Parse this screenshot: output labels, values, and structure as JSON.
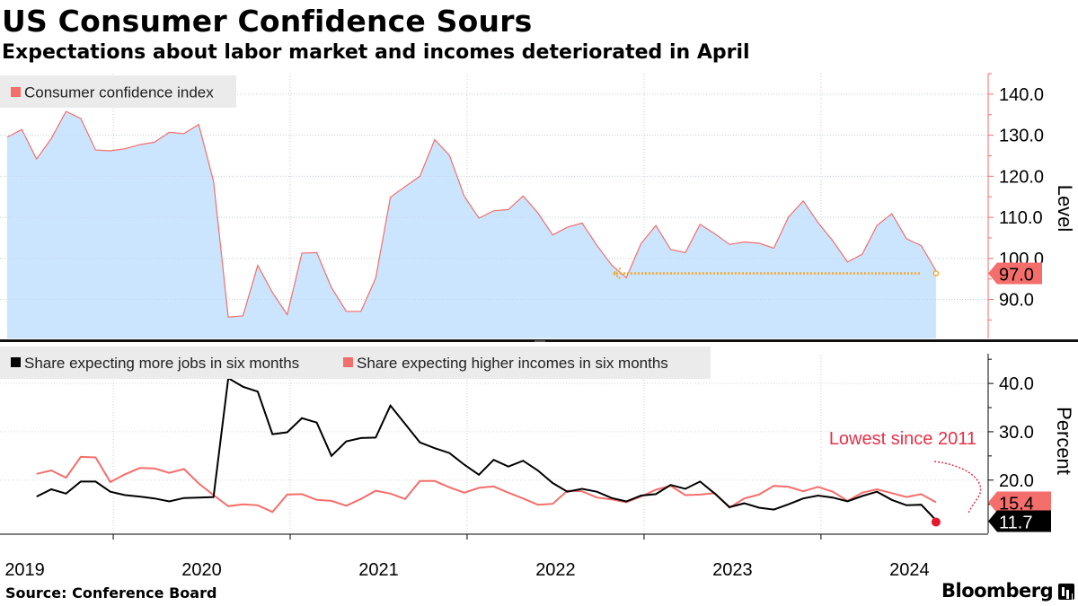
{
  "header": {
    "title": "US Consumer Confidence Sours",
    "subtitle": "Expectations about labor market and incomes deteriorated in April"
  },
  "footer": {
    "source": "Source: Conference Board",
    "brand": "Bloomberg"
  },
  "colors": {
    "accent": "#f46e6b",
    "area_fill": "#cce5ff",
    "jobs": "#000000",
    "arrow": "#f5a623",
    "annotation": "#e8314a",
    "axis": "#f46e6b"
  },
  "chart_data": [
    {
      "type": "area",
      "title": "Consumer confidence index",
      "ylabel": "Level",
      "ylim": [
        80.5,
        145
      ],
      "yticks": [
        90,
        100,
        110,
        120,
        130,
        140
      ],
      "ytick_labels": [
        "90.0",
        "100.0",
        "110.0",
        "120.0",
        "130.0",
        "140.0"
      ],
      "x_start": "2019-01",
      "x_end": "2024-04",
      "x_ticks": [
        "2019",
        "2020",
        "2021",
        "2022",
        "2023",
        "2024"
      ],
      "legend": "top-left",
      "series": [
        {
          "name": "Consumer confidence index",
          "values": [
            129.5,
            131.4,
            124.2,
            129.2,
            135.8,
            134.1,
            126.4,
            126.2,
            126.7,
            127.7,
            128.3,
            130.7,
            130.4,
            132.6,
            118.8,
            85.7,
            86.0,
            98.3,
            91.7,
            86.3,
            101.3,
            101.4,
            92.9,
            87.1,
            87.1,
            95.2,
            114.9,
            117.5,
            120.0,
            128.9,
            125.1,
            115.2,
            109.8,
            111.6,
            111.9,
            115.2,
            111.1,
            105.7,
            107.6,
            108.6,
            103.2,
            98.4,
            95.3,
            103.6,
            108.0,
            102.2,
            101.4,
            108.3,
            106.0,
            103.4,
            104.0,
            103.7,
            102.5,
            110.1,
            114.0,
            108.7,
            104.3,
            99.1,
            101.0,
            108.0,
            110.9,
            104.8,
            103.1,
            97.0
          ]
        }
      ],
      "last_value_label": "97.0",
      "annotation": {
        "type": "arrow",
        "from": "2024-04",
        "to": "2022-06",
        "value": 97.0
      }
    },
    {
      "type": "line",
      "ylabel": "Percent",
      "ylim": [
        9,
        48
      ],
      "yticks": [
        20,
        30,
        40
      ],
      "ytick_labels": [
        "20.0",
        "30.0",
        "40.0"
      ],
      "legend": "top-left",
      "series": [
        {
          "name": "Share expecting more jobs in six months",
          "values": [
            16.6,
            18.1,
            17.2,
            19.7,
            19.7,
            17.6,
            16.9,
            16.6,
            16.2,
            15.6,
            16.3,
            16.4,
            16.5,
            41.1,
            39.3,
            38.3,
            29.5,
            29.9,
            32.8,
            31.9,
            25.0,
            28.0,
            28.7,
            28.8,
            35.4,
            31.6,
            27.8,
            26.6,
            25.6,
            23.2,
            21.1,
            24.2,
            22.8,
            24.0,
            22.0,
            19.4,
            17.6,
            18.2,
            17.6,
            16.3,
            15.6,
            16.8,
            17.1,
            19.0,
            18.2,
            19.7,
            17.2,
            14.4,
            15.2,
            14.3,
            13.9,
            15.0,
            16.2,
            16.8,
            16.4,
            15.6,
            16.7,
            17.6,
            15.9,
            14.8,
            14.9,
            11.7
          ]
        },
        {
          "name": "Share expecting higher incomes in six months",
          "values": [
            21.3,
            22.0,
            20.5,
            24.8,
            24.7,
            19.6,
            21.2,
            22.5,
            22.4,
            21.5,
            22.3,
            19.3,
            16.9,
            14.6,
            15.0,
            14.8,
            13.4,
            17.0,
            17.1,
            15.9,
            15.7,
            14.7,
            16.1,
            17.8,
            17.2,
            16.1,
            19.8,
            19.8,
            18.5,
            17.4,
            18.4,
            18.7,
            17.4,
            16.2,
            14.9,
            15.1,
            17.8,
            17.7,
            16.4,
            16.0,
            15.4,
            16.6,
            18.0,
            18.8,
            16.9,
            17.0,
            17.3,
            14.3,
            16.2,
            17.0,
            18.8,
            18.6,
            17.7,
            18.6,
            17.6,
            15.7,
            17.4,
            18.1,
            17.3,
            16.5,
            17.1,
            15.4
          ]
        }
      ],
      "x_start": "2019-03",
      "last_value_labels": [
        "15.4",
        "11.7"
      ],
      "annotation": {
        "text": "Lowest since 2011",
        "value": 11.7
      }
    }
  ]
}
